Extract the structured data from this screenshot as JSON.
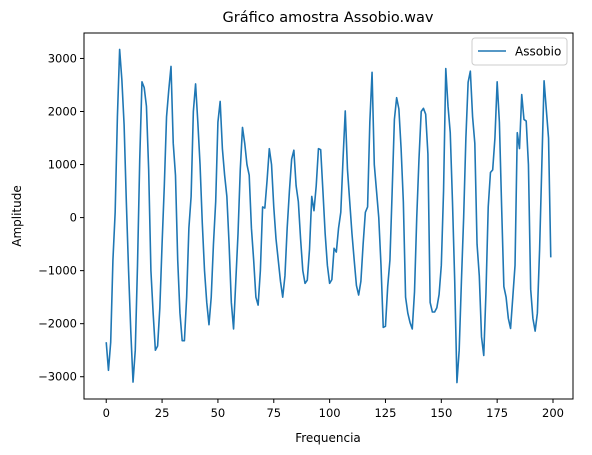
{
  "chart_data": {
    "type": "line",
    "title": "Gráfico amostra Assobio.wav",
    "xlabel": "Frequencia",
    "ylabel": "Amplitude",
    "xlim": [
      -9.95,
      208.95
    ],
    "ylim": [
      -3420,
      3480
    ],
    "xticks": [
      0,
      25,
      50,
      75,
      100,
      125,
      150,
      175,
      200
    ],
    "yticks": [
      -3000,
      -2000,
      -1000,
      0,
      1000,
      2000,
      3000
    ],
    "grid": false,
    "legend_position": "top-right",
    "series": [
      {
        "name": "Assobio",
        "color": "#1f77b4",
        "x_start": 0,
        "x_step": 1,
        "values": [
          -2350,
          -2880,
          -2350,
          -800,
          100,
          1900,
          3170,
          2600,
          1750,
          300,
          -1000,
          -2150,
          -3100,
          -2500,
          -900,
          1100,
          2560,
          2450,
          2100,
          900,
          -1000,
          -1800,
          -2500,
          -2420,
          -1700,
          -500,
          600,
          1900,
          2410,
          2850,
          1400,
          800,
          -800,
          -1800,
          -2320,
          -2320,
          -1500,
          -200,
          400,
          2000,
          2520,
          1800,
          1000,
          -100,
          -1000,
          -1600,
          -2020,
          -1500,
          -500,
          300,
          1800,
          2190,
          1300,
          800,
          400,
          -500,
          -1600,
          -2100,
          -1200,
          -300,
          900,
          1700,
          1400,
          1000,
          800,
          -200,
          -800,
          -1500,
          -1650,
          -1000,
          200,
          180,
          700,
          1300,
          1000,
          200,
          -400,
          -800,
          -1200,
          -1500,
          -1100,
          -200,
          500,
          1100,
          1270,
          600,
          300,
          -400,
          -1000,
          -1240,
          -1180,
          -600,
          400,
          130,
          600,
          1300,
          1280,
          500,
          -300,
          -900,
          -1240,
          -1170,
          -580,
          -650,
          -200,
          100,
          1100,
          2010,
          900,
          300,
          -300,
          -800,
          -1280,
          -1460,
          -1200,
          -500,
          100,
          200,
          1800,
          2740,
          1000,
          500,
          0,
          -900,
          -2070,
          -2050,
          -1300,
          -800,
          500,
          1850,
          2260,
          2050,
          1300,
          300,
          -1500,
          -1800,
          -1980,
          -2100,
          -1400,
          0,
          1100,
          2000,
          2060,
          1950,
          1200,
          -1600,
          -1780,
          -1780,
          -1700,
          -1450,
          -900,
          500,
          2810,
          2100,
          1600,
          300,
          -1200,
          -3110,
          -2500,
          -1200,
          0,
          1500,
          2550,
          2760,
          1900,
          1400,
          -500,
          -1100,
          -2250,
          -2600,
          -1400,
          200,
          850,
          900,
          1500,
          2560,
          1800,
          200,
          -1300,
          -1500,
          -1900,
          -2090,
          -1500,
          -900,
          1600,
          1300,
          2320,
          1850,
          1820,
          1000,
          -1350,
          -1900,
          -2140,
          -1800,
          -600,
          1000,
          2580,
          2040,
          1500,
          -750
        ]
      }
    ]
  }
}
